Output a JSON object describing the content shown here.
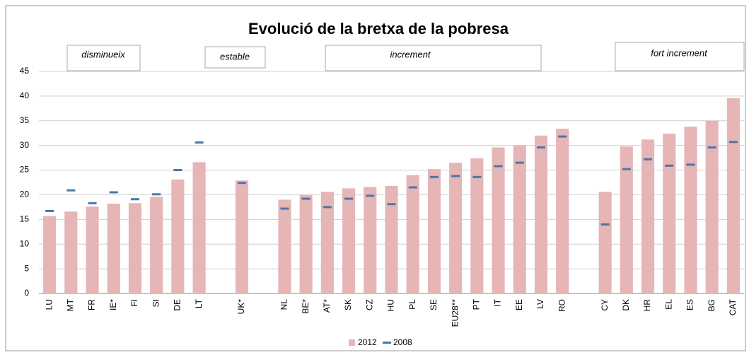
{
  "chart_data": {
    "type": "bar",
    "title": "Evolució de la bretxa de la pobresa",
    "annotations": [
      "disminueix",
      "estable",
      "increment",
      "fort increment"
    ],
    "categories": [
      "LU",
      "MT",
      "FR",
      "IE*",
      "FI",
      "SI",
      "DE",
      "LT",
      null,
      "UK*",
      null,
      "NL",
      "BE*",
      "AT*",
      "SK",
      "CZ",
      "HU",
      "PL",
      "SE",
      "EU28**",
      "PT",
      "IT",
      "EE",
      "LV",
      "RO",
      null,
      "CY",
      "DK",
      "HR",
      "EL",
      "ES",
      "BG",
      "CAT"
    ],
    "series": [
      {
        "name": "2012",
        "color": "#e6b5b5",
        "values": [
          15.7,
          16.6,
          17.6,
          18.2,
          18.3,
          19.6,
          23.1,
          26.6,
          null,
          22.9,
          null,
          19.0,
          20.0,
          20.6,
          21.3,
          21.6,
          21.8,
          24.0,
          25.2,
          26.5,
          27.4,
          29.6,
          30.0,
          32.0,
          33.4,
          null,
          20.6,
          29.8,
          31.2,
          32.4,
          33.8,
          35.0,
          39.6
        ]
      },
      {
        "name": "2008",
        "color": "#4a76ad",
        "values": [
          16.7,
          20.9,
          18.3,
          20.5,
          19.1,
          20.1,
          25.0,
          30.6,
          null,
          22.4,
          null,
          17.2,
          19.2,
          17.5,
          19.2,
          19.8,
          18.1,
          21.5,
          23.6,
          23.8,
          23.6,
          25.8,
          26.5,
          29.6,
          31.8,
          null,
          14.0,
          25.2,
          27.2,
          25.9,
          26.1,
          29.6,
          30.7
        ]
      }
    ],
    "ylim": [
      0,
      45
    ],
    "yticks": [
      0,
      5,
      10,
      15,
      20,
      25,
      30,
      35,
      40,
      45
    ],
    "grid": true
  }
}
